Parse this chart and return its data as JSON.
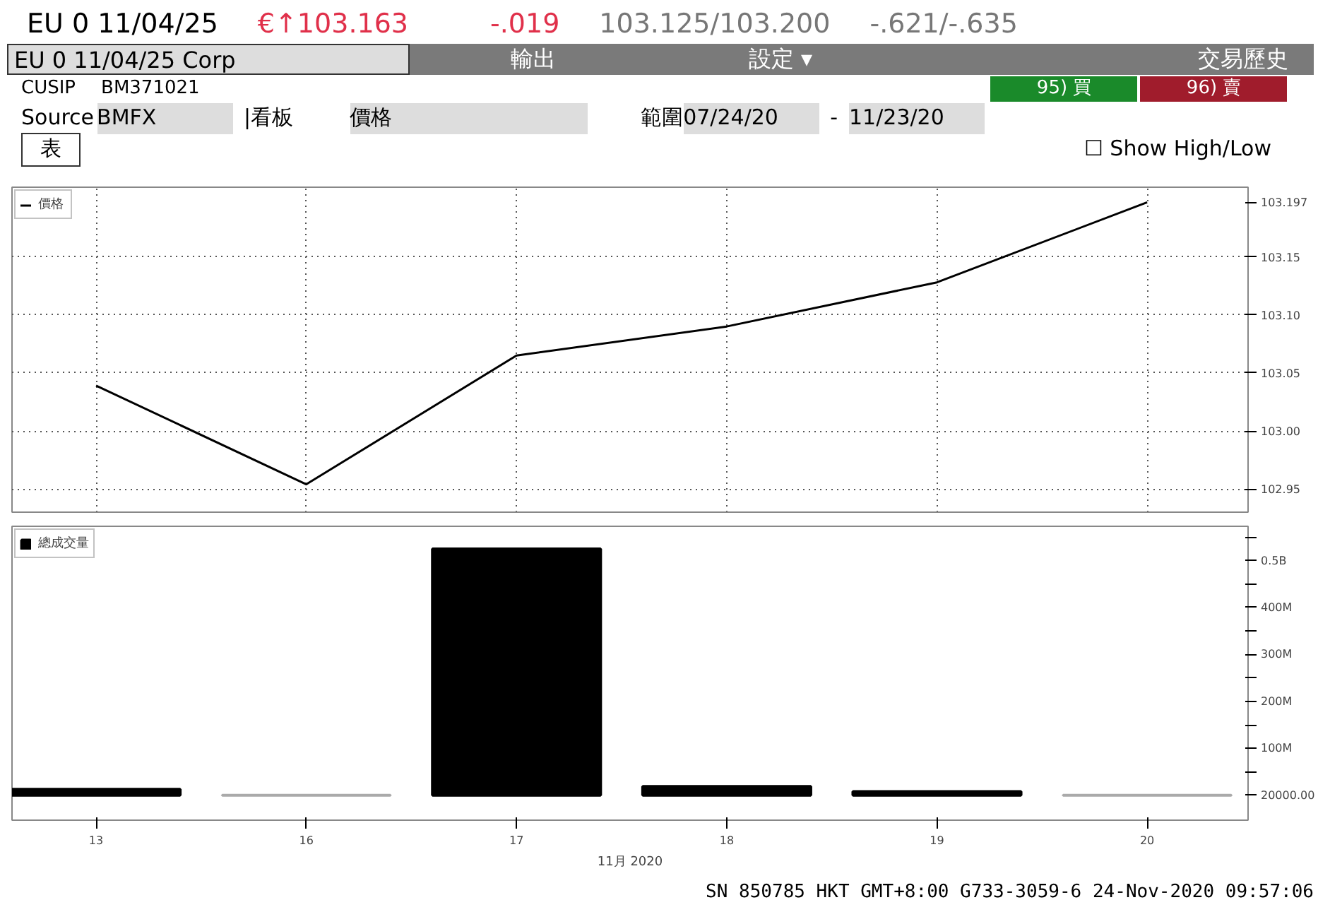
{
  "chart_data": [
    {
      "type": "line",
      "title": "EU 0 11/04/25 Corp",
      "annotations": [
        "EU 0 11/04/25",
        "€↑103.163",
        "-.019",
        "103.125/103.200",
        "-.621/-.635",
        "輸出",
        "設定 ▾",
        "交易歷史",
        "CUSIP",
        "BM371021",
        "95) 買",
        "96) 賣",
        "Source",
        "BMFX",
        "|看板",
        "價格",
        "範圍",
        "07/24/20",
        "-",
        "11/23/20",
        "表",
        "☐ Show High/Low"
      ],
      "categories": [
        "13",
        "16",
        "17",
        "18",
        "19",
        "20"
      ],
      "series": [
        {
          "name": "價格",
          "color": "#000000",
          "values": [
            103.039,
            102.954,
            103.065,
            103.09,
            103.128,
            103.197
          ]
        }
      ],
      "ylim": [
        102.93,
        103.21
      ],
      "yticks": [
        {
          "value": 102.95,
          "label": "102.95"
        },
        {
          "value": 103.0,
          "label": "103.00"
        },
        {
          "value": 103.05,
          "label": "103.05"
        },
        {
          "value": 103.1,
          "label": "103.10"
        },
        {
          "value": 103.15,
          "label": "103.15"
        },
        {
          "value": 103.197,
          "label": "103.197"
        }
      ],
      "grid": true,
      "legend": "top left",
      "tick_labels": "y",
      "marker": "none",
      "line_style": "solid"
    },
    {
      "type": "bar",
      "xlabel": "11月 2020",
      "annotations": [
        "SN 850785 HKT  GMT+8:00 G733-3059-6 24-Nov-2020 09:57:06"
      ],
      "categories": [
        "13",
        "16",
        "17",
        "18",
        "19",
        "20"
      ],
      "series": [
        {
          "name": "總成交量",
          "color": "#000000",
          "colors": [
            "#000000",
            "#aaaaaa",
            "#000000",
            "#000000",
            "#000000",
            "#aaaaaa"
          ],
          "values": [
            13000000,
            20000,
            525000000,
            19000000,
            8000000,
            20000
          ]
        }
      ],
      "ylim": [
        -53000000,
        573000000
      ],
      "yticks": [
        {
          "value": 20000,
          "label": "20000.00"
        },
        {
          "value": 50000000,
          "label": null
        },
        {
          "value": 100000000,
          "label": "100M"
        },
        {
          "value": 150000000,
          "label": null
        },
        {
          "value": 200000000,
          "label": "200M"
        },
        {
          "value": 250000000,
          "label": null
        },
        {
          "value": 300000000,
          "label": "300M"
        },
        {
          "value": 350000000,
          "label": null
        },
        {
          "value": 400000000,
          "label": "400M"
        },
        {
          "value": 450000000,
          "label": null
        },
        {
          "value": 500000000,
          "label": "0.5B"
        },
        {
          "value": 550000000,
          "label": null
        }
      ],
      "grid": false,
      "legend": "top left"
    }
  ]
}
